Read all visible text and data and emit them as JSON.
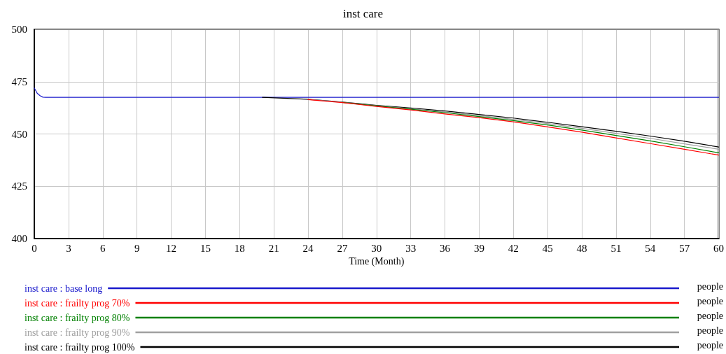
{
  "chart_data": {
    "type": "line",
    "title": "inst care",
    "xlabel": "Time (Month)",
    "xlim": [
      0,
      60
    ],
    "xticks": [
      0,
      3,
      6,
      9,
      12,
      15,
      18,
      21,
      24,
      27,
      30,
      33,
      36,
      39,
      42,
      45,
      48,
      51,
      54,
      57,
      60
    ],
    "ylim": [
      400,
      500
    ],
    "yticks": [
      400,
      425,
      450,
      475,
      500
    ],
    "grid": true,
    "legend": "bottom",
    "marker": "none",
    "line_style": "solid",
    "annotations": [
      "people",
      "people",
      "people",
      "people",
      "people"
    ],
    "series": [
      {
        "name": "inst care : base long",
        "color": "#1a1acc",
        "x": [
          0,
          0.25,
          0.5,
          0.75,
          1,
          20,
          30,
          40,
          50,
          60
        ],
        "values": [
          472,
          469.5,
          468.3,
          467.6,
          467.5,
          467.5,
          467.5,
          467.5,
          467.5,
          467.5
        ]
      },
      {
        "name": "inst care : frailty prog 70%",
        "color": "#ff0000",
        "x": [
          24,
          27,
          30,
          33,
          36,
          39,
          42,
          45,
          48,
          51,
          54,
          57,
          60
        ],
        "values": [
          466.4,
          465,
          463.2,
          461.5,
          459.6,
          457.8,
          455.8,
          453.4,
          450.9,
          448.1,
          445.4,
          442.7,
          439.9
        ]
      },
      {
        "name": "inst care : frailty prog 80%",
        "color": "#008000",
        "x": [
          27,
          30,
          33,
          36,
          39,
          42,
          45,
          48,
          51,
          54,
          57,
          60
        ],
        "values": [
          465.1,
          463.4,
          461.8,
          460.2,
          458.3,
          456.4,
          454.3,
          451.9,
          449.3,
          446.7,
          443.9,
          441
        ]
      },
      {
        "name": "inst care : frailty prog 90%",
        "color": "#a0a0a0",
        "x": [
          24,
          27,
          30,
          33,
          36,
          39,
          42,
          45,
          48,
          51,
          54,
          57,
          60
        ],
        "values": [
          466.5,
          465.2,
          463.5,
          462.1,
          460.6,
          458.8,
          457,
          455,
          452.7,
          450.3,
          447.9,
          445.3,
          442.7
        ]
      },
      {
        "name": "inst care : frailty prog 100%",
        "color": "#000000",
        "x": [
          20,
          24,
          27,
          30,
          33,
          36,
          39,
          42,
          45,
          48,
          51,
          54,
          57,
          60
        ],
        "values": [
          467.5,
          466.6,
          465.3,
          463.7,
          462.4,
          461,
          459.3,
          457.6,
          455.6,
          453.5,
          451.3,
          449,
          446.5,
          443.8
        ]
      }
    ]
  }
}
